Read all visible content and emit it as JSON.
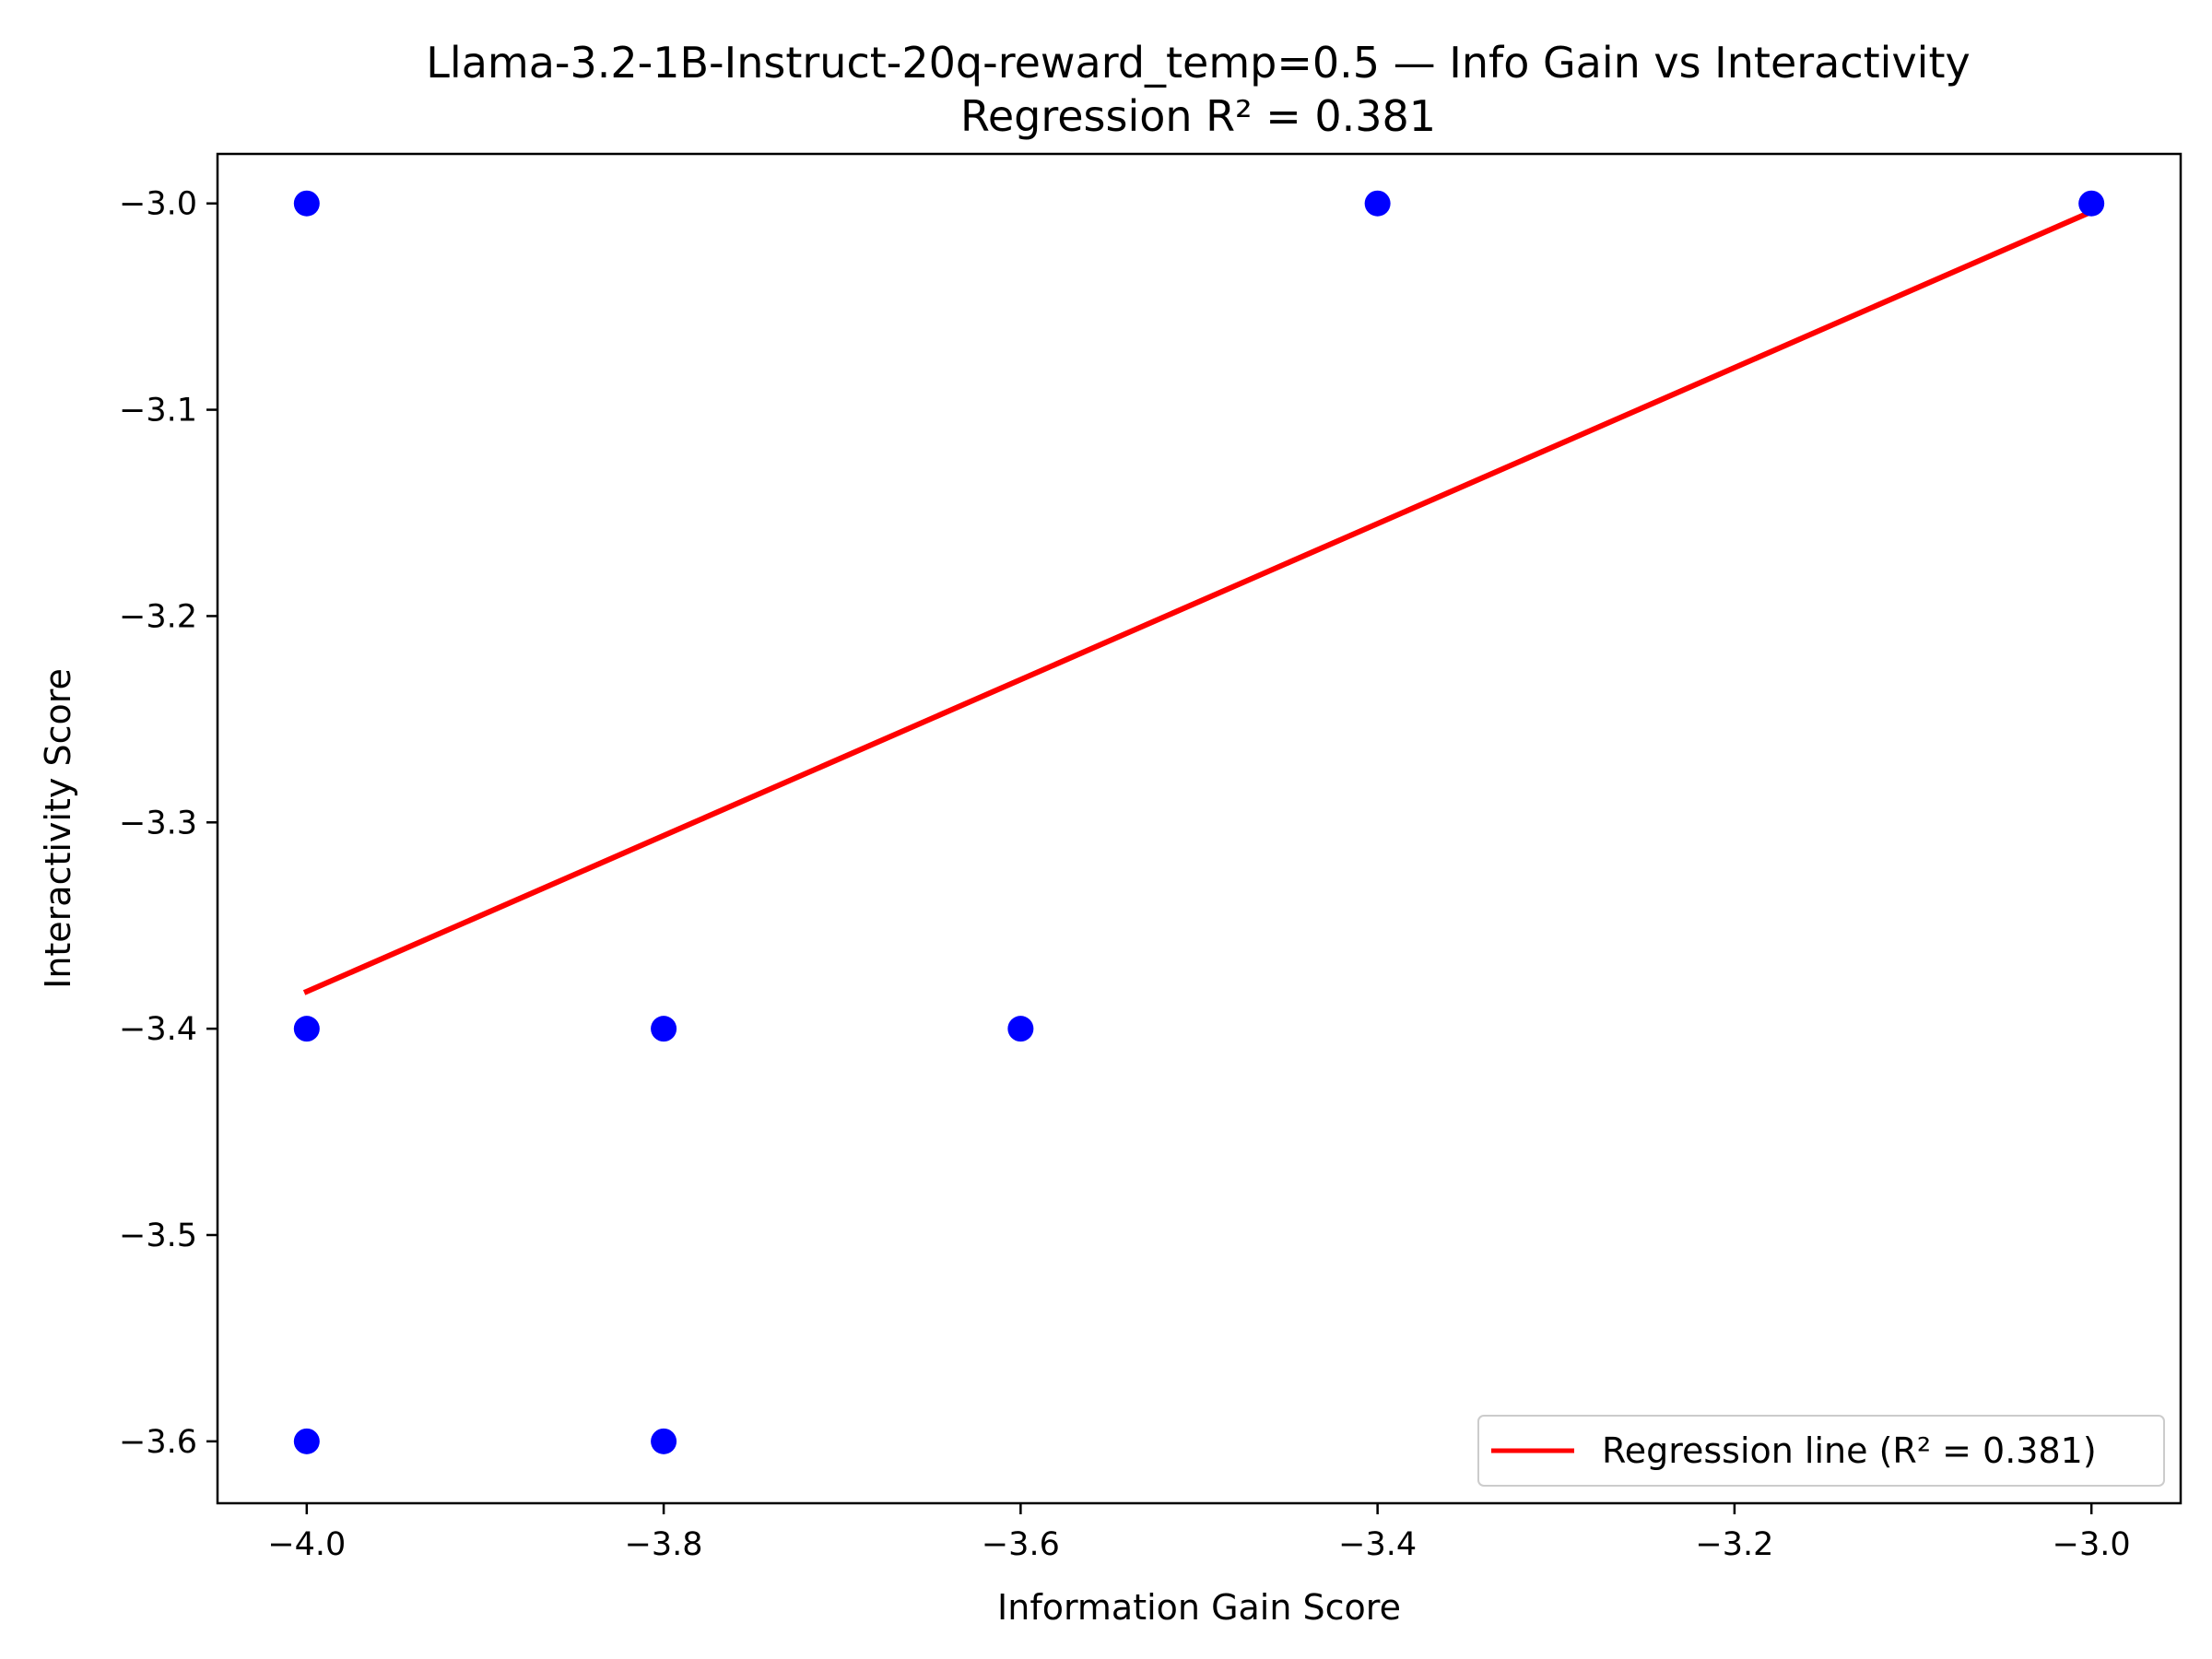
{
  "chart_data": {
    "type": "scatter",
    "title": "Llama-3.2-1B-Instruct-20q-reward_temp=0.5 — Info Gain vs Interactivity",
    "subtitle": "Regression R² = 0.381",
    "xlabel": "Information Gain Score",
    "ylabel": "Interactivity Score",
    "xlim": [
      -4.05,
      -2.95
    ],
    "ylim": [
      -3.63,
      -2.976
    ],
    "x_ticks": [
      -4.0,
      -3.8,
      -3.6,
      -3.4,
      -3.2,
      -3.0
    ],
    "x_tick_labels": [
      "−4.0",
      "−3.8",
      "−3.6",
      "−3.4",
      "−3.2",
      "−3.0"
    ],
    "y_ticks": [
      -3.0,
      -3.1,
      -3.2,
      -3.3,
      -3.4,
      -3.5,
      -3.6
    ],
    "y_tick_labels": [
      "−3.0",
      "−3.1",
      "−3.2",
      "−3.3",
      "−3.4",
      "−3.5",
      "−3.6"
    ],
    "points": {
      "x": [
        -4.0,
        -3.4,
        -3.0,
        -4.0,
        -3.8,
        -3.6,
        -4.0,
        -3.8
      ],
      "y": [
        -3.0,
        -3.0,
        -3.0,
        -3.4,
        -3.4,
        -3.4,
        -3.6,
        -3.6
      ],
      "color": "#0000ff"
    },
    "regression_line": {
      "name": "Regression line (R² = 0.381)",
      "x": [
        -4.0,
        -3.0
      ],
      "y": [
        -3.382,
        -3.004
      ],
      "color": "#ff0000"
    },
    "legend_position": "lower-right",
    "grid": false
  }
}
